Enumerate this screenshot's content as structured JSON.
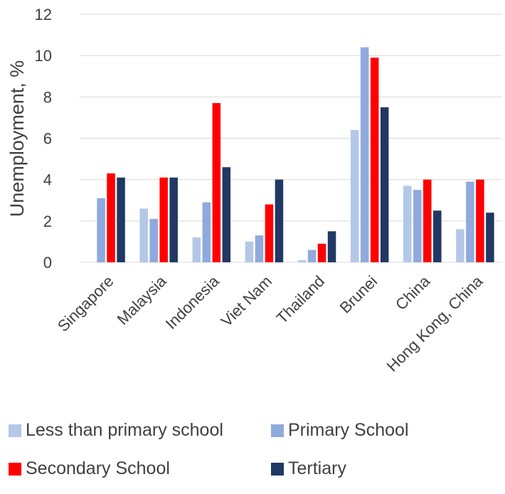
{
  "chart_data": {
    "type": "bar",
    "ylabel": "Unemployment, %",
    "ylim": [
      0,
      12
    ],
    "yticks": [
      0,
      2,
      4,
      6,
      8,
      10,
      12
    ],
    "grid": true,
    "legend_position": "bottom",
    "categories": [
      "Singapore",
      "Malaysia",
      "Indonesia",
      "Viet Nam",
      "Thailand",
      "Brunei",
      "China",
      "Hong Kong, China"
    ],
    "series": [
      {
        "name": "Less than primary school",
        "color": "#b4c7e7",
        "values": [
          0,
          2.6,
          1.2,
          1.0,
          0.1,
          6.4,
          3.7,
          1.6
        ]
      },
      {
        "name": "Primary School",
        "color": "#8faadc",
        "values": [
          3.1,
          2.1,
          2.9,
          1.3,
          0.6,
          10.4,
          3.5,
          3.9
        ]
      },
      {
        "name": "Secondary School",
        "color": "#ff0000",
        "values": [
          4.3,
          4.1,
          7.7,
          2.8,
          0.9,
          9.9,
          4.0,
          4.0
        ]
      },
      {
        "name": "Tertiary",
        "color": "#203864",
        "values": [
          4.1,
          4.1,
          4.6,
          4.0,
          1.5,
          7.5,
          2.5,
          2.4
        ]
      }
    ]
  }
}
